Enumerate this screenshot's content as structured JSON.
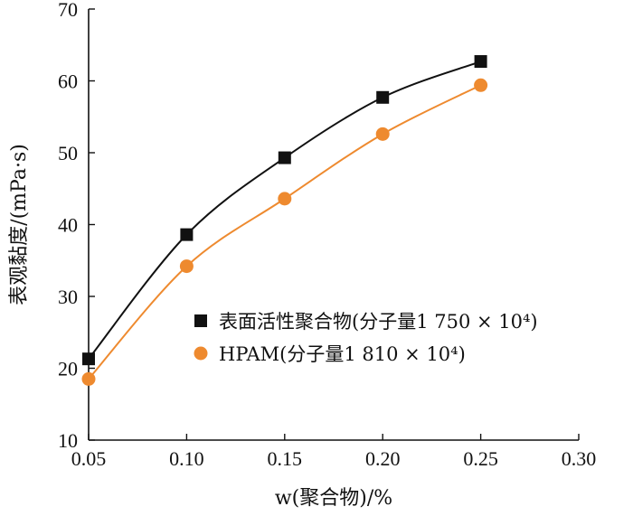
{
  "chart_data": {
    "type": "line",
    "xlabel": "w(聚合物)/%",
    "ylabel": "表观黏度/(mPa·s)",
    "xlim": [
      0.05,
      0.3
    ],
    "ylim": [
      10,
      70
    ],
    "x_ticks": [
      "0.05",
      "0.10",
      "0.15",
      "0.20",
      "0.25",
      "0.30"
    ],
    "y_ticks": [
      "10",
      "20",
      "30",
      "40",
      "50",
      "60",
      "70"
    ],
    "x": [
      0.05,
      0.1,
      0.15,
      0.2,
      0.25
    ],
    "legend_position": "center-right",
    "series": [
      {
        "name": "表面活性聚合物(分子量1 750 × 10⁴)",
        "color": "#111111",
        "marker": "square",
        "values": [
          21.3,
          38.6,
          49.3,
          57.7,
          62.7
        ]
      },
      {
        "name": "HPAM(分子量1 810 × 10⁴)",
        "color": "#ee8a2f",
        "marker": "circle",
        "values": [
          18.5,
          34.2,
          43.6,
          52.6,
          59.4
        ]
      }
    ]
  }
}
